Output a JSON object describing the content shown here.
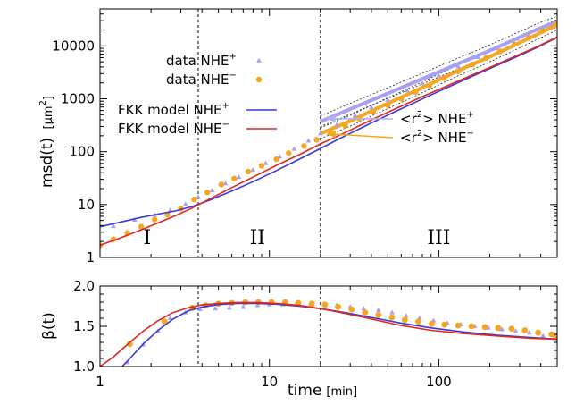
{
  "colors": {
    "nhe_plus": "#3a3ad6",
    "nhe_plus_data": "#a8a0f0",
    "nhe_minus": "#e0281e",
    "nhe_minus_data": "#f5a623",
    "arrow_plus": "#b4b0f2",
    "arrow_minus": "#f5a623",
    "sigma": "#222222"
  },
  "labels": {
    "top_ylabel": "msd(t)",
    "top_yunit": "[µm",
    "top_yunit_sup": "2",
    "top_yunit_close": "]",
    "bottom_ylabel": "β(t)",
    "xlabel": "time",
    "xunit": "[min]",
    "legend_data": "data NHE",
    "legend_model": "FKK model NHE",
    "sign_plus": "+",
    "sign_minus": "−",
    "annot_r_open": "<r",
    "annot_r_sup": "2",
    "annot_r_close": "> NHE",
    "regime_1": "I",
    "regime_2": "II",
    "regime_3": "III"
  },
  "chart_data": [
    {
      "id": "msd",
      "type": "scatter+line",
      "xscale": "log",
      "yscale": "log",
      "xlim": [
        1,
        500
      ],
      "ylim": [
        1,
        50000
      ],
      "xticks": [
        1,
        10,
        100
      ],
      "xtick_labels": [
        "1",
        "10",
        "100"
      ],
      "yticks": [
        1,
        10,
        100,
        1000,
        10000
      ],
      "ytick_labels": [
        "1",
        "10",
        "100",
        "1000",
        "10000"
      ],
      "vlines": [
        3.8,
        20
      ],
      "regimes": [
        {
          "label": "I",
          "x": 1.9,
          "y": 1.8
        },
        {
          "label": "II",
          "x": 8.5,
          "y": 1.8
        },
        {
          "label": "III",
          "x": 100,
          "y": 1.8
        }
      ],
      "series": [
        {
          "name": "data NHE+",
          "kind": "scatter",
          "marker": "triangle",
          "x": [
            1.2,
            1.6,
            2.1,
            2.6,
            3.2,
            3.8,
            4.6,
            5.5,
            6.6,
            8,
            9.5,
            11.5,
            14,
            17,
            20,
            25,
            32,
            40,
            50,
            65,
            80,
            100,
            130,
            170,
            220,
            290,
            380,
            480
          ],
          "y": [
            3.9,
            5.1,
            6.3,
            7.8,
            10.1,
            13.8,
            18.5,
            25,
            33,
            45,
            60,
            80,
            112,
            160,
            220,
            320,
            480,
            680,
            950,
            1420,
            1950,
            2750,
            4100,
            6100,
            8900,
            13500,
            20000,
            27500
          ]
        },
        {
          "name": "data NHE-",
          "kind": "scatter",
          "marker": "circle",
          "x": [
            1,
            1.2,
            1.45,
            1.75,
            2.1,
            2.5,
            3,
            3.6,
            4.3,
            5.2,
            6.2,
            7.5,
            9,
            11,
            13,
            16,
            19,
            23,
            28,
            34,
            41,
            50,
            60,
            73,
            88,
            107,
            130,
            158,
            190,
            230,
            280,
            340,
            410,
            490
          ],
          "y": [
            1.7,
            2.2,
            2.9,
            3.8,
            5.2,
            6.5,
            8.4,
            12.5,
            17,
            24,
            31,
            42,
            54,
            72,
            94,
            128,
            168,
            225,
            310,
            420,
            560,
            760,
            1000,
            1350,
            1800,
            2450,
            3300,
            4450,
            5900,
            7900,
            10700,
            14300,
            19200,
            25500
          ]
        },
        {
          "name": "FKK model NHE+",
          "kind": "line",
          "x": [
            1,
            1.3,
            1.7,
            2.2,
            2.8,
            3.5,
            4.5,
            6,
            8,
            11,
            15,
            20,
            28,
            40,
            55,
            75,
            100,
            140,
            200,
            280,
            380,
            500
          ],
          "y": [
            3.8,
            4.6,
            5.6,
            6.6,
            7.6,
            9.2,
            12.3,
            18,
            27,
            44,
            72,
            115,
            200,
            350,
            570,
            900,
            1380,
            2250,
            3750,
            6000,
            9300,
            14500
          ]
        },
        {
          "name": "FKK model NHE-",
          "kind": "line",
          "x": [
            1,
            1.3,
            1.7,
            2.2,
            2.8,
            3.5,
            4.5,
            6,
            8,
            11,
            15,
            20,
            28,
            40,
            55,
            75,
            100,
            140,
            200,
            280,
            380,
            500
          ],
          "y": [
            1.7,
            2.3,
            3.2,
            4.5,
            6.2,
            8.6,
            13,
            21,
            33,
            55,
            88,
            140,
            230,
            400,
            640,
            1000,
            1500,
            2400,
            3900,
            6300,
            9600,
            14800
          ]
        },
        {
          "name": "<r2> NHE+",
          "kind": "line",
          "style": "thick",
          "x": [
            20,
            30,
            45,
            65,
            90,
            130,
            190,
            270,
            380,
            500
          ],
          "y": [
            370,
            640,
            1100,
            1800,
            2800,
            4600,
            7600,
            12500,
            20500,
            28500
          ]
        },
        {
          "name": "<r2> NHE-",
          "kind": "line",
          "style": "thick",
          "x": [
            20,
            30,
            45,
            65,
            90,
            130,
            190,
            270,
            380,
            500
          ],
          "y": [
            220,
            380,
            700,
            1200,
            1950,
            3400,
            5800,
            9800,
            16500,
            25000
          ]
        }
      ],
      "confidence_bands": [
        {
          "of": "<r2> NHE+",
          "x": [
            20,
            60,
            150,
            300,
            500
          ],
          "lower_factor": 0.8,
          "upper_factor": 1.28
        },
        {
          "of": "<r2> NHE-",
          "x": [
            20,
            60,
            150,
            300,
            500
          ],
          "lower_factor": 0.8,
          "upper_factor": 1.28
        }
      ],
      "legend": [
        {
          "label": "data NHE+",
          "series": "data NHE+"
        },
        {
          "label": "data NHE-",
          "series": "data NHE-"
        },
        {
          "label": "FKK model NHE+",
          "series": "FKK model NHE+"
        },
        {
          "label": "FKK model NHE-",
          "series": "FKK model NHE-"
        }
      ],
      "annotations": [
        {
          "label": "<r2> NHE+",
          "arrow_to": [
            20,
            420
          ]
        },
        {
          "label": "<r2> NHE-",
          "arrow_to": [
            20,
            215
          ]
        }
      ]
    },
    {
      "id": "beta",
      "type": "scatter+line",
      "xscale": "log",
      "yscale": "linear",
      "xlim": [
        1,
        500
      ],
      "ylim": [
        1.0,
        2.0
      ],
      "yticks": [
        1.0,
        1.5,
        2.0
      ],
      "ytick_labels": [
        "1.0",
        "1.5",
        "2.0"
      ],
      "vlines": [
        3.8,
        20
      ],
      "series": [
        {
          "name": "beta data NHE+",
          "kind": "scatter",
          "marker": "triangle",
          "x": [
            1.45,
            1.8,
            2.2,
            2.6,
            3.2,
            3.9,
            4.8,
            5.8,
            7,
            8.5,
            10,
            12,
            14.5,
            17.5,
            21,
            25,
            30,
            36,
            44,
            53,
            64,
            77,
            93,
            112,
            135,
            163,
            196,
            236,
            284,
            342,
            412,
            480
          ],
          "y": [
            1.05,
            1.27,
            1.44,
            1.6,
            1.67,
            1.71,
            1.72,
            1.73,
            1.74,
            1.76,
            1.77,
            1.77,
            1.78,
            1.78,
            1.77,
            1.76,
            1.74,
            1.72,
            1.7,
            1.67,
            1.63,
            1.6,
            1.57,
            1.54,
            1.52,
            1.5,
            1.48,
            1.46,
            1.44,
            1.42,
            1.38,
            1.35
          ]
        },
        {
          "name": "beta data NHE-",
          "kind": "scatter",
          "marker": "circle",
          "x": [
            1.5,
            2.4,
            3.5,
            4.2,
            5,
            6,
            7.2,
            8.6,
            10.3,
            12.4,
            14.8,
            17.8,
            21.3,
            25.5,
            30.6,
            36.7,
            44,
            52.8,
            63,
            75.7,
            90.8,
            108,
            130,
            156,
            187,
            224,
            269,
            322,
            386,
            463,
            500
          ],
          "y": [
            1.28,
            1.56,
            1.73,
            1.76,
            1.78,
            1.79,
            1.8,
            1.8,
            1.8,
            1.8,
            1.79,
            1.78,
            1.77,
            1.74,
            1.71,
            1.67,
            1.64,
            1.61,
            1.58,
            1.56,
            1.53,
            1.52,
            1.51,
            1.5,
            1.49,
            1.48,
            1.47,
            1.45,
            1.42,
            1.4,
            1.38
          ]
        },
        {
          "name": "beta FKK NHE+",
          "kind": "line",
          "x": [
            1.35,
            1.5,
            1.8,
            2.2,
            2.7,
            3.3,
            4,
            5,
            6.5,
            8.5,
            11,
            15,
            20,
            28,
            40,
            60,
            90,
            140,
            220,
            350,
            500
          ],
          "y": [
            1.0,
            1.1,
            1.28,
            1.45,
            1.59,
            1.69,
            1.74,
            1.77,
            1.785,
            1.785,
            1.775,
            1.75,
            1.72,
            1.67,
            1.61,
            1.54,
            1.48,
            1.43,
            1.39,
            1.36,
            1.34
          ]
        },
        {
          "name": "beta FKK NHE-",
          "kind": "line",
          "x": [
            1,
            1.2,
            1.5,
            1.8,
            2.2,
            2.7,
            3.3,
            4,
            5,
            6.5,
            8.5,
            11,
            15,
            20,
            28,
            40,
            60,
            90,
            140,
            220,
            350,
            500
          ],
          "y": [
            1.0,
            1.12,
            1.3,
            1.44,
            1.57,
            1.67,
            1.73,
            1.765,
            1.785,
            1.795,
            1.795,
            1.785,
            1.76,
            1.72,
            1.66,
            1.59,
            1.51,
            1.45,
            1.41,
            1.38,
            1.35,
            1.34
          ]
        }
      ]
    }
  ]
}
